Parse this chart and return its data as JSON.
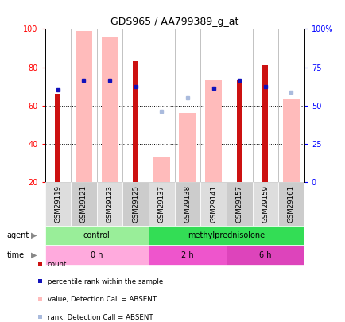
{
  "title": "GDS965 / AA799389_g_at",
  "samples": [
    "GSM29119",
    "GSM29121",
    "GSM29123",
    "GSM29125",
    "GSM29137",
    "GSM29138",
    "GSM29141",
    "GSM29157",
    "GSM29159",
    "GSM29161"
  ],
  "count_values": [
    66,
    0,
    0,
    83,
    0,
    0,
    0,
    73,
    81,
    0
  ],
  "pink_bar_values": [
    0,
    99,
    96,
    0,
    33,
    56,
    73,
    0,
    0,
    63
  ],
  "blue_sq_values": [
    68,
    73,
    73,
    70,
    null,
    null,
    69,
    73,
    70,
    null
  ],
  "light_blue_sq_values": [
    null,
    null,
    null,
    null,
    57,
    64,
    null,
    null,
    null,
    67
  ],
  "agent_groups": [
    {
      "label": "control",
      "start": 0,
      "end": 4,
      "color": "#99EE99"
    },
    {
      "label": "methylprednisolone",
      "start": 4,
      "end": 10,
      "color": "#33DD55"
    }
  ],
  "time_groups": [
    {
      "label": "0 h",
      "start": 0,
      "end": 4,
      "color": "#FFAADD"
    },
    {
      "label": "2 h",
      "start": 4,
      "end": 7,
      "color": "#EE55CC"
    },
    {
      "label": "6 h",
      "start": 7,
      "end": 10,
      "color": "#DD44BB"
    }
  ],
  "ylim_left": [
    20,
    100
  ],
  "ylim_right": [
    0,
    100
  ],
  "yticks_left": [
    20,
    40,
    60,
    80,
    100
  ],
  "ytick_labels_left": [
    "20",
    "40",
    "60",
    "80",
    "100"
  ],
  "ytick_labels_right": [
    "0",
    "25",
    "50",
    "75",
    "100%"
  ],
  "grid_vals": [
    40,
    60,
    80
  ],
  "bar_color_red": "#CC1111",
  "bar_color_pink": "#FFBBBB",
  "bar_color_blue": "#1111BB",
  "bar_color_light_blue": "#AABBDD",
  "bg_color": "#FFFFFF",
  "legend_items": [
    {
      "color": "#CC1111",
      "label": "count"
    },
    {
      "color": "#1111BB",
      "label": "percentile rank within the sample"
    },
    {
      "color": "#FFBBBB",
      "label": "value, Detection Call = ABSENT"
    },
    {
      "color": "#AABBDD",
      "label": "rank, Detection Call = ABSENT"
    }
  ]
}
